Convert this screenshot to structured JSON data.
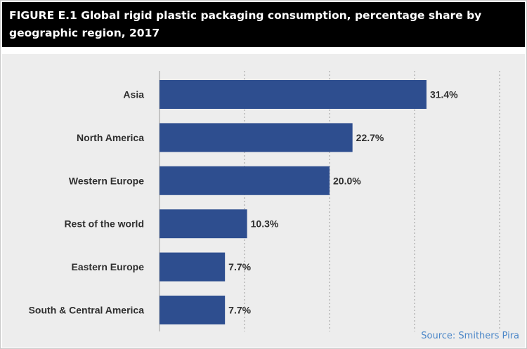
{
  "figure": {
    "title": "FIGURE E.1 Global rigid plastic packaging consumption, percentage share by geographic region, 2017",
    "source": "Source: Smithers Pira"
  },
  "colors": {
    "bar": "#2e4e8f",
    "plot_background": "#ededed",
    "title_background": "#000000",
    "source_text": "#4a86c8"
  },
  "chart_data": {
    "type": "bar",
    "orientation": "horizontal",
    "title": "FIGURE E.1 Global rigid plastic packaging consumption, percentage share by geographic region, 2017",
    "xlabel": "",
    "ylabel": "",
    "categories": [
      "Asia",
      "North America",
      "Western Europe",
      "Rest of the world",
      "Eastern Europe",
      "South & Central America"
    ],
    "values": [
      31.4,
      22.7,
      20.0,
      10.3,
      7.7,
      7.7
    ],
    "data_labels": [
      "31.4%",
      "22.7%",
      "20.0%",
      "10.3%",
      "7.7%",
      "7.7%"
    ],
    "xlim": [
      0,
      40
    ],
    "gridlines": [
      0,
      10,
      20,
      30,
      40
    ],
    "grid": "vertical dashed",
    "legend": "none"
  }
}
